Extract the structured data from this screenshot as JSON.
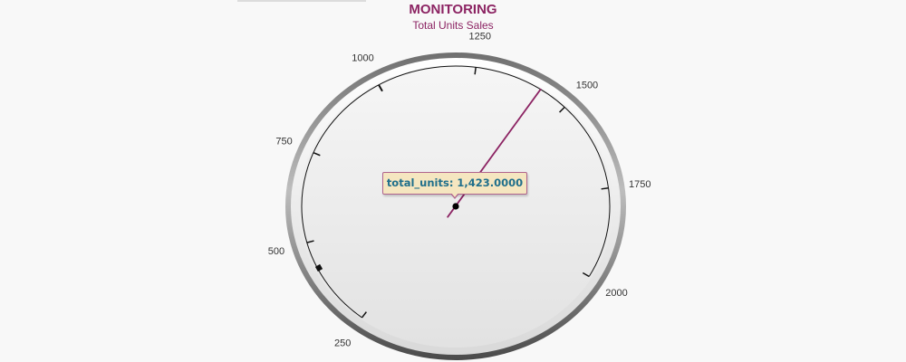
{
  "chart_data": {
    "type": "gauge",
    "title": "MONITORING",
    "subtitle": "Total Units Sales",
    "min": 0,
    "max": 2000,
    "tick_values": [
      250,
      500,
      750,
      1000,
      1250,
      1500,
      1750,
      2000
    ],
    "tick_labels": [
      "250",
      "500",
      "750",
      "1000",
      "1250",
      "1500",
      "1750",
      "2000"
    ],
    "value": 1423,
    "series_name": "total_units",
    "tooltip": {
      "label": "total_units: 1,423.0000"
    },
    "colors": {
      "title": "#8c2463",
      "needle": "#8c2463",
      "tooltip_text": "#1f6f8b",
      "tooltip_bg": "#f5e6c0"
    }
  }
}
